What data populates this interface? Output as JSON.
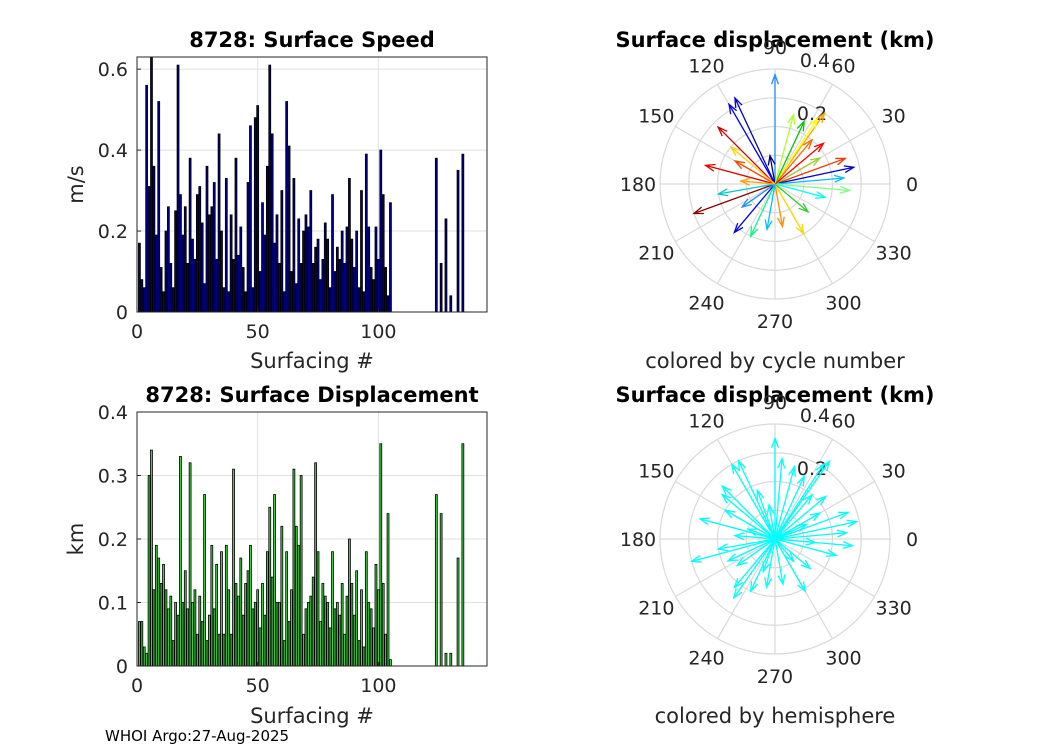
{
  "chart_data": [
    {
      "type": "bar",
      "title": "8728: Surface Speed",
      "xlabel": "Surfacing #",
      "ylabel": "m/s",
      "xlim": [
        0,
        145
      ],
      "ylim": [
        0,
        0.63
      ],
      "xticks": [
        "0",
        "50",
        "100"
      ],
      "yticks": [
        "0",
        "0.2",
        "0.4",
        "0.6"
      ],
      "bar_color": "#00008b",
      "x": [
        1,
        2,
        3,
        4,
        5,
        6,
        7,
        8,
        9,
        10,
        11,
        12,
        13,
        14,
        15,
        16,
        17,
        18,
        19,
        20,
        21,
        22,
        23,
        24,
        25,
        26,
        27,
        28,
        29,
        30,
        31,
        32,
        33,
        34,
        35,
        36,
        37,
        38,
        39,
        40,
        41,
        42,
        43,
        44,
        45,
        46,
        47,
        48,
        49,
        50,
        51,
        52,
        53,
        54,
        55,
        56,
        57,
        58,
        59,
        60,
        61,
        62,
        63,
        64,
        65,
        66,
        67,
        68,
        69,
        70,
        71,
        72,
        73,
        74,
        75,
        76,
        77,
        78,
        79,
        80,
        81,
        82,
        83,
        84,
        85,
        86,
        87,
        88,
        89,
        90,
        91,
        92,
        93,
        94,
        95,
        96,
        97,
        98,
        99,
        100,
        101,
        102,
        103,
        104,
        105,
        124,
        126,
        128,
        130,
        133,
        135
      ],
      "values": [
        0.17,
        0.08,
        0.06,
        0.56,
        0.31,
        0.63,
        0.36,
        0.19,
        0.52,
        0.11,
        0.05,
        0.2,
        0.26,
        0.12,
        0.06,
        0.25,
        0.61,
        0.29,
        0.19,
        0.26,
        0.12,
        0.38,
        0.18,
        0.13,
        0.29,
        0.31,
        0.22,
        0.07,
        0.36,
        0.24,
        0.26,
        0.32,
        0.13,
        0.44,
        0.2,
        0.06,
        0.33,
        0.05,
        0.24,
        0.13,
        0.38,
        0.14,
        0.21,
        0.11,
        0.05,
        0.32,
        0.46,
        0.06,
        0.48,
        0.51,
        0.1,
        0.27,
        0.19,
        0.36,
        0.61,
        0.44,
        0.17,
        0.24,
        0.12,
        0.3,
        0.05,
        0.52,
        0.41,
        0.1,
        0.33,
        0.07,
        0.23,
        0.12,
        0.2,
        0.24,
        0.21,
        0.3,
        0.12,
        0.16,
        0.18,
        0.08,
        0.13,
        0.22,
        0.18,
        0.06,
        0.29,
        0.1,
        0.16,
        0.13,
        0.2,
        0.12,
        0.21,
        0.33,
        0.18,
        0.11,
        0.2,
        0.06,
        0.3,
        0.05,
        0.39,
        0.21,
        0.11,
        0.08,
        0.21,
        0.13,
        0.4,
        0.29,
        0.11,
        0.04,
        0.27,
        0.38,
        0.12,
        0.23,
        0.04,
        0.35,
        0.39
      ]
    },
    {
      "type": "bar",
      "title": "8728: Surface Displacement",
      "xlabel": "Surfacing #",
      "ylabel": "km",
      "xlim": [
        0,
        145
      ],
      "ylim": [
        0,
        0.4
      ],
      "xticks": [
        "0",
        "50",
        "100"
      ],
      "yticks": [
        "0",
        "0.1",
        "0.2",
        "0.3",
        "0.4"
      ],
      "bar_color": "#3cd13c",
      "x": [
        1,
        2,
        3,
        4,
        5,
        6,
        7,
        8,
        9,
        10,
        11,
        12,
        13,
        14,
        15,
        16,
        17,
        18,
        19,
        20,
        21,
        22,
        23,
        24,
        25,
        26,
        27,
        28,
        29,
        30,
        31,
        32,
        33,
        34,
        35,
        36,
        37,
        38,
        39,
        40,
        41,
        42,
        43,
        44,
        45,
        46,
        47,
        48,
        49,
        50,
        51,
        52,
        53,
        54,
        55,
        56,
        57,
        58,
        59,
        60,
        61,
        62,
        63,
        64,
        65,
        66,
        67,
        68,
        69,
        70,
        71,
        72,
        73,
        74,
        75,
        76,
        77,
        78,
        79,
        80,
        81,
        82,
        83,
        84,
        85,
        86,
        87,
        88,
        89,
        90,
        91,
        92,
        93,
        94,
        95,
        96,
        97,
        98,
        99,
        100,
        101,
        102,
        103,
        104,
        105,
        124,
        126,
        128,
        130,
        133,
        135
      ],
      "values": [
        0.07,
        0.07,
        0.03,
        0.02,
        0.3,
        0.34,
        0.12,
        0.19,
        0.17,
        0.13,
        0.16,
        0.12,
        0.09,
        0.11,
        0.04,
        0.1,
        0.08,
        0.33,
        0.1,
        0.15,
        0.09,
        0.32,
        0.1,
        0.12,
        0.05,
        0.11,
        0.07,
        0.27,
        0.04,
        0.08,
        0.19,
        0.09,
        0.16,
        0.05,
        0.18,
        0.05,
        0.19,
        0.12,
        0.05,
        0.31,
        0.13,
        0.11,
        0.17,
        0.08,
        0.13,
        0.15,
        0.19,
        0.09,
        0.1,
        0.12,
        0.06,
        0.13,
        0.08,
        0.18,
        0.25,
        0.14,
        0.27,
        0.1,
        0.1,
        0.22,
        0.04,
        0.18,
        0.07,
        0.12,
        0.31,
        0.22,
        0.19,
        0.3,
        0.05,
        0.09,
        0.1,
        0.11,
        0.14,
        0.32,
        0.18,
        0.07,
        0.13,
        0.11,
        0.1,
        0.06,
        0.18,
        0.09,
        0.1,
        0.08,
        0.13,
        0.05,
        0.11,
        0.2,
        0.13,
        0.08,
        0.15,
        0.04,
        0.12,
        0.03,
        0.18,
        0.1,
        0.09,
        0.06,
        0.16,
        0.12,
        0.35,
        0.13,
        0.05,
        0.24,
        0.01,
        0.27,
        0.24,
        0.02,
        0.02,
        0.17,
        0.35
      ]
    },
    {
      "type": "polar-compass",
      "title": "Surface displacement (km)",
      "caption": "colored by cycle number",
      "rmax": 0.4,
      "rticks": [
        "0.2",
        "0.4"
      ],
      "angle_labels": [
        "0",
        "30",
        "60",
        "90",
        "120",
        "150",
        "180",
        "210",
        "240",
        "270",
        "300",
        "330"
      ],
      "color_scale": "jet (cycle number, first=blue, last=red)",
      "vectors": [
        {
          "angle": 90,
          "r": 0.38,
          "color": "#1e90ff"
        },
        {
          "angle": 115,
          "r": 0.33,
          "color": "#0000cd"
        },
        {
          "angle": 120,
          "r": 0.32,
          "color": "#0000ff"
        },
        {
          "angle": 135,
          "r": 0.28,
          "color": "#cc0000"
        },
        {
          "angle": 55,
          "r": 0.3,
          "color": "#ffa500"
        },
        {
          "angle": 57,
          "r": 0.27,
          "color": "#ffff00"
        },
        {
          "angle": 65,
          "r": 0.24,
          "color": "#00c800"
        },
        {
          "angle": 50,
          "r": 0.2,
          "color": "#ff6600"
        },
        {
          "angle": 20,
          "r": 0.26,
          "color": "#ff3300"
        },
        {
          "angle": 12,
          "r": 0.28,
          "color": "#0000cd"
        },
        {
          "angle": 5,
          "r": 0.24,
          "color": "#00bfff"
        },
        {
          "angle": -5,
          "r": 0.26,
          "color": "#7fff7f"
        },
        {
          "angle": 165,
          "r": 0.25,
          "color": "#dd0000"
        },
        {
          "angle": 200,
          "r": 0.3,
          "color": "#8b0000"
        },
        {
          "angle": 190,
          "r": 0.2,
          "color": "#00c8c8"
        },
        {
          "angle": 230,
          "r": 0.22,
          "color": "#0000ff"
        },
        {
          "angle": 245,
          "r": 0.2,
          "color": "#00ff7f"
        },
        {
          "angle": 280,
          "r": 0.15,
          "color": "#ff8c00"
        },
        {
          "angle": 300,
          "r": 0.2,
          "color": "#ffd700"
        },
        {
          "angle": 320,
          "r": 0.15,
          "color": "#32cd32"
        },
        {
          "angle": 260,
          "r": 0.16,
          "color": "#00bfff"
        },
        {
          "angle": 100,
          "r": 0.1,
          "color": "#000080"
        },
        {
          "angle": 150,
          "r": 0.16,
          "color": "#ff4500"
        },
        {
          "angle": 30,
          "r": 0.18,
          "color": "#9acd32"
        },
        {
          "angle": 75,
          "r": 0.25,
          "color": "#adff2f"
        },
        {
          "angle": 215,
          "r": 0.14,
          "color": "#1e90ff"
        },
        {
          "angle": 345,
          "r": 0.18,
          "color": "#00ffff"
        },
        {
          "angle": 175,
          "r": 0.12,
          "color": "#ffa500"
        },
        {
          "angle": 40,
          "r": 0.22,
          "color": "#ff0000"
        },
        {
          "angle": 140,
          "r": 0.2,
          "color": "#ffd000"
        }
      ]
    },
    {
      "type": "polar-compass",
      "title": "Surface displacement (km)",
      "caption": "colored by hemisphere",
      "rmax": 0.4,
      "rticks": [
        "0.2",
        "0.4"
      ],
      "angle_labels": [
        "0",
        "30",
        "60",
        "90",
        "120",
        "150",
        "180",
        "210",
        "240",
        "270",
        "300",
        "330"
      ],
      "color": "#00ffff",
      "vectors": [
        {
          "angle": 90,
          "r": 0.35
        },
        {
          "angle": 115,
          "r": 0.3
        },
        {
          "angle": 120,
          "r": 0.3
        },
        {
          "angle": 135,
          "r": 0.26
        },
        {
          "angle": 55,
          "r": 0.33
        },
        {
          "angle": 57,
          "r": 0.31
        },
        {
          "angle": 65,
          "r": 0.24
        },
        {
          "angle": 50,
          "r": 0.2
        },
        {
          "angle": 20,
          "r": 0.27
        },
        {
          "angle": 12,
          "r": 0.29
        },
        {
          "angle": 5,
          "r": 0.25
        },
        {
          "angle": -5,
          "r": 0.27
        },
        {
          "angle": 165,
          "r": 0.27
        },
        {
          "angle": 195,
          "r": 0.3
        },
        {
          "angle": 190,
          "r": 0.2
        },
        {
          "angle": 230,
          "r": 0.22
        },
        {
          "angle": 245,
          "r": 0.2
        },
        {
          "angle": 280,
          "r": 0.16
        },
        {
          "angle": 300,
          "r": 0.21
        },
        {
          "angle": 320,
          "r": 0.16
        },
        {
          "angle": 260,
          "r": 0.17
        },
        {
          "angle": 100,
          "r": 0.12
        },
        {
          "angle": 150,
          "r": 0.2
        },
        {
          "angle": 30,
          "r": 0.18
        },
        {
          "angle": 75,
          "r": 0.26
        },
        {
          "angle": 215,
          "r": 0.16
        },
        {
          "angle": 345,
          "r": 0.22
        },
        {
          "angle": 175,
          "r": 0.14
        },
        {
          "angle": 40,
          "r": 0.23
        },
        {
          "angle": 140,
          "r": 0.24
        },
        {
          "angle": 85,
          "r": 0.28
        },
        {
          "angle": 110,
          "r": 0.18
        },
        {
          "angle": 205,
          "r": 0.18
        },
        {
          "angle": 250,
          "r": 0.12
        },
        {
          "angle": 310,
          "r": 0.1
        },
        {
          "angle": 355,
          "r": 0.14
        },
        {
          "angle": 25,
          "r": 0.12
        },
        {
          "angle": 160,
          "r": 0.1
        },
        {
          "angle": 235,
          "r": 0.25
        }
      ]
    }
  ],
  "footer": "WHOI Argo:27-Aug-2025"
}
